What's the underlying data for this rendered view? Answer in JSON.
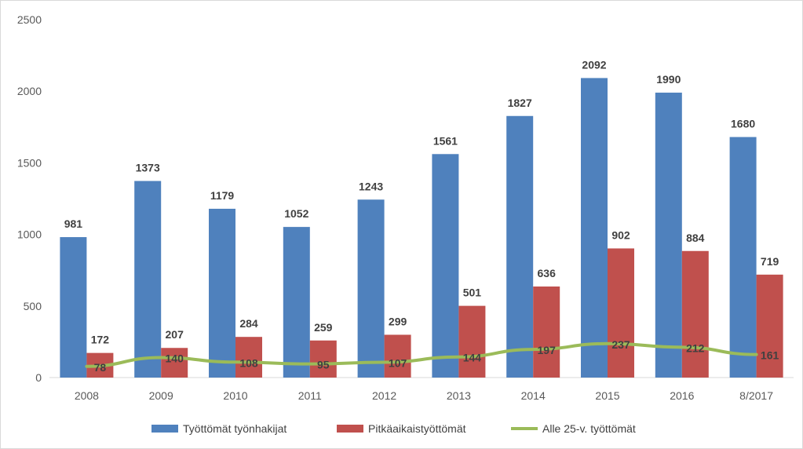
{
  "chart_data": {
    "type": "bar",
    "title": "",
    "xlabel": "",
    "ylabel": "",
    "categories": [
      "2008",
      "2009",
      "2010",
      "2011",
      "2012",
      "2013",
      "2014",
      "2015",
      "2016",
      "8/2017"
    ],
    "ylim": [
      0,
      2500
    ],
    "yticks": [
      0,
      500,
      1000,
      1500,
      2000,
      2500
    ],
    "grid": false,
    "legend_position": "bottom",
    "series": [
      {
        "name": "Työttömät työnhakijat",
        "kind": "bar",
        "color": "#4f81bd",
        "values": [
          981,
          1373,
          1179,
          1052,
          1243,
          1561,
          1827,
          2092,
          1990,
          1680
        ]
      },
      {
        "name": "Pitkäaikaistyöttömät",
        "kind": "bar",
        "color": "#c0504d",
        "values": [
          172,
          207,
          284,
          259,
          299,
          501,
          636,
          902,
          884,
          719
        ]
      },
      {
        "name": "Alle 25-v. työttömät",
        "kind": "line",
        "color": "#9bbb59",
        "values": [
          78,
          140,
          108,
          95,
          107,
          144,
          197,
          237,
          212,
          161
        ]
      }
    ]
  }
}
